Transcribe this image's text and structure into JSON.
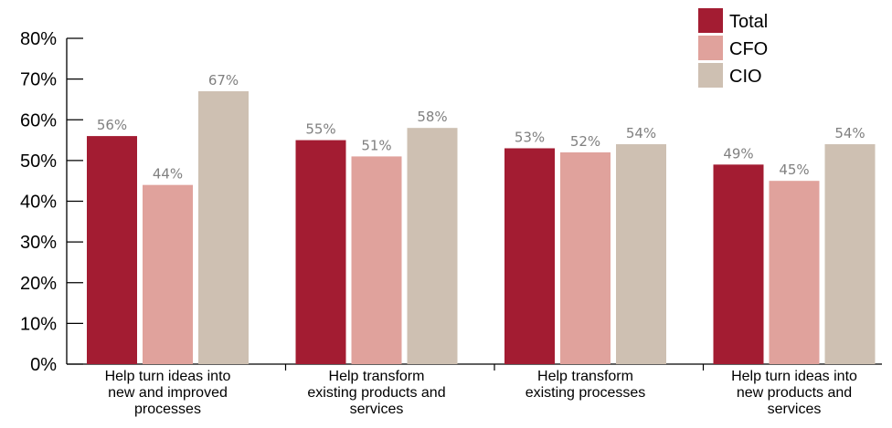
{
  "chart_data": {
    "type": "bar",
    "title": "",
    "xlabel": "",
    "ylabel": "",
    "categories": [
      [
        "Help turn ideas into",
        "new and improved",
        "processes"
      ],
      [
        "Help transform",
        "existing products and",
        "services"
      ],
      [
        "Help transform",
        "existing processes"
      ],
      [
        "Help turn ideas into",
        "new products and",
        "services"
      ]
    ],
    "series": [
      {
        "name": "Total",
        "color": "#a31c32",
        "values": [
          56,
          55,
          53,
          49
        ]
      },
      {
        "name": "CFO",
        "color": "#e0a29c",
        "values": [
          44,
          51,
          52,
          45
        ]
      },
      {
        "name": "CIO",
        "color": "#cec0b2",
        "values": [
          67,
          58,
          54,
          54
        ]
      }
    ],
    "data_labels": [
      [
        "56%",
        "55%",
        "53%",
        "49%"
      ],
      [
        "44%",
        "51%",
        "52%",
        "45%"
      ],
      [
        "67%",
        "58%",
        "54%",
        "54%"
      ]
    ],
    "y_ticks": [
      "0%",
      "10%",
      "20%",
      "30%",
      "40%",
      "50%",
      "60%",
      "70%",
      "80%"
    ],
    "ylim": [
      0,
      80
    ],
    "grid": false,
    "legend_position": "top-right"
  }
}
